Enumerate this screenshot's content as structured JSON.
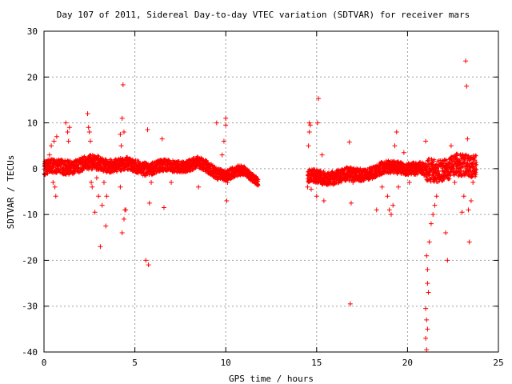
{
  "chart_data": {
    "type": "scatter",
    "title": "Day 107 of 2011, Sidereal Day-to-day VTEC variation (SDTVAR) for receiver mars",
    "xlabel": "GPS time / hours",
    "ylabel": "SDTVAR / TECUs",
    "xlim": [
      0,
      25
    ],
    "ylim": [
      -40,
      30
    ],
    "xticks": [
      0,
      5,
      10,
      15,
      20,
      25
    ],
    "yticks": [
      30,
      20,
      10,
      0,
      -10,
      -20,
      -30,
      -40
    ],
    "grid": true,
    "marker": "+",
    "color": "#ff0000",
    "series": [
      {
        "name": "SDTVAR",
        "band_segments": [
          {
            "x_start": 0.0,
            "x_end": 3.0,
            "center_start": 0.0,
            "center_end": 1.2,
            "spread": 1.6
          },
          {
            "x_start": 3.0,
            "x_end": 6.0,
            "center_start": 1.2,
            "center_end": 0.2,
            "spread": 1.5
          },
          {
            "x_start": 6.0,
            "x_end": 8.5,
            "center_start": 0.2,
            "center_end": 1.0,
            "spread": 1.3
          },
          {
            "x_start": 8.5,
            "x_end": 10.0,
            "center_start": 1.0,
            "center_end": -1.5,
            "spread": 1.3
          },
          {
            "x_start": 10.0,
            "x_end": 11.0,
            "center_start": -1.5,
            "center_end": -0.5,
            "spread": 1.2
          },
          {
            "x_start": 11.0,
            "x_end": 11.8,
            "center_start": -0.5,
            "center_end": -2.5,
            "spread": 0.9
          },
          {
            "x_start": 14.5,
            "x_end": 17.0,
            "center_start": -2.0,
            "center_end": -1.5,
            "spread": 1.5
          },
          {
            "x_start": 17.0,
            "x_end": 19.5,
            "center_start": -1.5,
            "center_end": 0.5,
            "spread": 1.4
          },
          {
            "x_start": 19.5,
            "x_end": 21.0,
            "center_start": 0.5,
            "center_end": -0.5,
            "spread": 1.4
          },
          {
            "x_start": 21.0,
            "x_end": 23.8,
            "center_start": -0.5,
            "center_end": 1.0,
            "spread": 2.5
          }
        ],
        "scatter_points": [
          [
            0.2,
            -1
          ],
          [
            0.3,
            3
          ],
          [
            0.4,
            5
          ],
          [
            0.5,
            -3
          ],
          [
            0.55,
            6
          ],
          [
            0.6,
            -4
          ],
          [
            0.65,
            -6
          ],
          [
            0.7,
            7
          ],
          [
            1.2,
            10
          ],
          [
            1.3,
            8
          ],
          [
            1.4,
            9
          ],
          [
            1.35,
            6
          ],
          [
            2.4,
            12
          ],
          [
            2.45,
            9
          ],
          [
            2.5,
            8
          ],
          [
            2.55,
            6
          ],
          [
            2.6,
            -3
          ],
          [
            2.65,
            -4
          ],
          [
            2.8,
            -9.5
          ],
          [
            2.9,
            -2
          ],
          [
            3.0,
            -6
          ],
          [
            3.1,
            -17
          ],
          [
            3.2,
            -8
          ],
          [
            3.3,
            -3
          ],
          [
            3.4,
            -12.5
          ],
          [
            3.45,
            -6
          ],
          [
            4.2,
            7.5
          ],
          [
            4.25,
            5
          ],
          [
            4.3,
            11
          ],
          [
            4.35,
            18.3
          ],
          [
            4.4,
            8
          ],
          [
            4.45,
            -9
          ],
          [
            4.4,
            -11
          ],
          [
            4.3,
            -14
          ],
          [
            4.5,
            -9
          ],
          [
            4.2,
            -4
          ],
          [
            5.6,
            -20
          ],
          [
            5.7,
            8.5
          ],
          [
            5.75,
            -21
          ],
          [
            5.8,
            -7.5
          ],
          [
            5.9,
            -3
          ],
          [
            6.5,
            6.5
          ],
          [
            6.6,
            -8.5
          ],
          [
            7.0,
            -3
          ],
          [
            7.3,
            1
          ],
          [
            8.5,
            -4
          ],
          [
            9.5,
            10
          ],
          [
            9.8,
            3
          ],
          [
            9.9,
            6
          ],
          [
            10.0,
            9.5
          ],
          [
            10.0,
            11
          ],
          [
            10.05,
            -7
          ],
          [
            10.1,
            -3
          ],
          [
            14.5,
            -4
          ],
          [
            14.55,
            5
          ],
          [
            14.6,
            8
          ],
          [
            14.6,
            10
          ],
          [
            14.65,
            9.5
          ],
          [
            14.7,
            -4.5
          ],
          [
            15.0,
            -6
          ],
          [
            15.05,
            10
          ],
          [
            15.1,
            15.3
          ],
          [
            15.2,
            -3
          ],
          [
            15.3,
            3
          ],
          [
            15.4,
            -7
          ],
          [
            16.8,
            5.8
          ],
          [
            16.85,
            -29.5
          ],
          [
            16.9,
            -7.5
          ],
          [
            17.0,
            -3
          ],
          [
            18.3,
            -9
          ],
          [
            18.6,
            -4
          ],
          [
            18.9,
            -6
          ],
          [
            19.0,
            -9
          ],
          [
            19.1,
            -10
          ],
          [
            19.2,
            -8
          ],
          [
            19.3,
            5
          ],
          [
            19.4,
            8
          ],
          [
            19.5,
            -4
          ],
          [
            19.8,
            3.5
          ],
          [
            20.1,
            -3
          ],
          [
            21.0,
            6
          ],
          [
            21.05,
            -19
          ],
          [
            21.1,
            -22
          ],
          [
            21.1,
            -25
          ],
          [
            21.15,
            -27
          ],
          [
            21.0,
            -30.5
          ],
          [
            21.05,
            -33
          ],
          [
            21.1,
            -35
          ],
          [
            21.0,
            -37
          ],
          [
            21.05,
            -39.5
          ],
          [
            21.2,
            -16
          ],
          [
            21.3,
            -12
          ],
          [
            21.4,
            -10
          ],
          [
            21.5,
            -8
          ],
          [
            21.6,
            -6
          ],
          [
            22.1,
            -14
          ],
          [
            22.2,
            -20
          ],
          [
            22.4,
            5
          ],
          [
            22.6,
            -3
          ],
          [
            23.0,
            -9.5
          ],
          [
            23.1,
            -6
          ],
          [
            23.2,
            23.5
          ],
          [
            23.25,
            18
          ],
          [
            23.3,
            6.5
          ],
          [
            23.35,
            -9
          ],
          [
            23.4,
            -16
          ],
          [
            23.5,
            -7
          ],
          [
            23.6,
            -3
          ]
        ]
      }
    ]
  }
}
